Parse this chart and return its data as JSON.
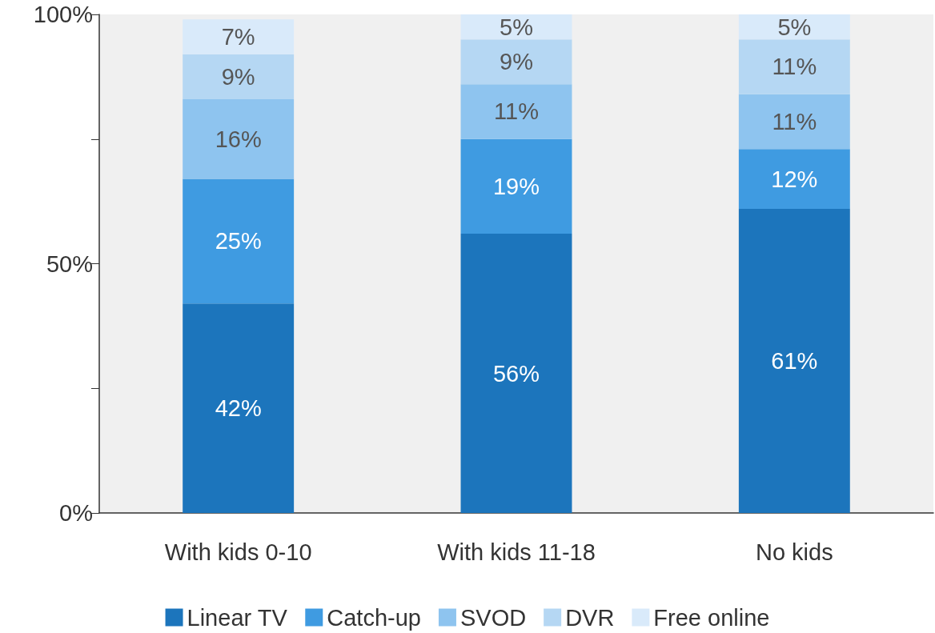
{
  "chart_data": {
    "type": "bar",
    "stacked": true,
    "categories": [
      "With kids 0-10",
      "With kids 11-18",
      "No kids"
    ],
    "series": [
      {
        "name": "Linear TV",
        "color": "#1c75bc",
        "values": [
          42,
          56,
          61
        ],
        "value_labels": [
          "42%",
          "56%",
          "61%"
        ]
      },
      {
        "name": "Catch-up",
        "color": "#3f9be1",
        "values": [
          25,
          19,
          12
        ],
        "value_labels": [
          "25%",
          "19%",
          "12%"
        ]
      },
      {
        "name": "SVOD",
        "color": "#8ec4ef",
        "values": [
          16,
          11,
          11
        ],
        "value_labels": [
          "16%",
          "11%",
          "11%"
        ]
      },
      {
        "name": "DVR",
        "color": "#b5d7f3",
        "values": [
          9,
          9,
          11
        ],
        "value_labels": [
          "9%",
          "9%",
          "11%"
        ]
      },
      {
        "name": "Free online",
        "color": "#d9eafa",
        "values": [
          7,
          5,
          5
        ],
        "value_labels": [
          "7%",
          "5%",
          "5%"
        ]
      }
    ],
    "ylim": [
      0,
      100
    ],
    "yticks": [
      {
        "value": 0,
        "label": "0%"
      },
      {
        "value": 25,
        "label": null
      },
      {
        "value": 50,
        "label": "50%"
      },
      {
        "value": 75,
        "label": null
      },
      {
        "value": 100,
        "label": "100%"
      }
    ],
    "grid": false,
    "legend": "bottom"
  }
}
